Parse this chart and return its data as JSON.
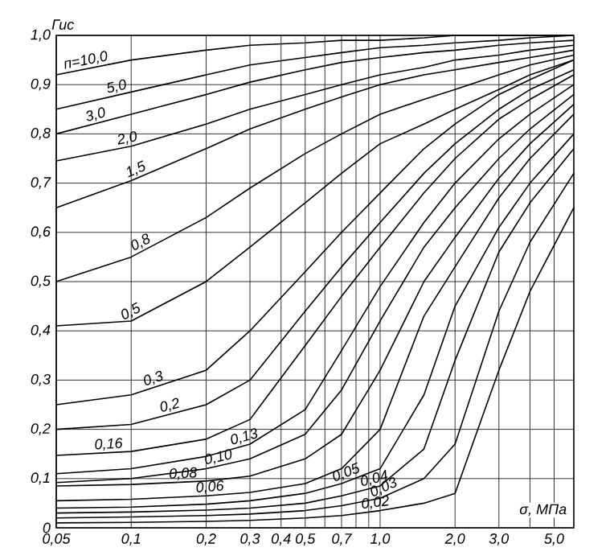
{
  "chart_data": {
    "type": "line",
    "ylabel": "Гис",
    "xlabel": "σ, МПа",
    "log": "x",
    "grid": true,
    "marker": "none",
    "line_style": "solid",
    "xlim": [
      0.05,
      6.0
    ],
    "ylim": [
      0,
      1.0
    ],
    "xticks": [
      {
        "value": 0.05,
        "label": "0,05"
      },
      {
        "value": 0.1,
        "label": "0,1"
      },
      {
        "value": 0.2,
        "label": "0,2"
      },
      {
        "value": 0.3,
        "label": "0,3"
      },
      {
        "value": 0.4,
        "label": "0,4"
      },
      {
        "value": 0.5,
        "label": "0,5"
      },
      {
        "value": 0.6,
        "label": null
      },
      {
        "value": 0.7,
        "label": "0,7"
      },
      {
        "value": 0.8,
        "label": null
      },
      {
        "value": 0.9,
        "label": null
      },
      {
        "value": 1.0,
        "label": "1,0"
      },
      {
        "value": 2.0,
        "label": "2,0"
      },
      {
        "value": 3.0,
        "label": "3,0"
      },
      {
        "value": 4.0,
        "label": null
      },
      {
        "value": 5.0,
        "label": "5,0"
      }
    ],
    "yticks": [
      {
        "value": 0,
        "label": "0"
      },
      {
        "value": 0.1,
        "label": "0,1"
      },
      {
        "value": 0.2,
        "label": "0,2"
      },
      {
        "value": 0.3,
        "label": "0,3"
      },
      {
        "value": 0.4,
        "label": "0,4"
      },
      {
        "value": 0.5,
        "label": "0,5"
      },
      {
        "value": 0.6,
        "label": "0,6"
      },
      {
        "value": 0.7,
        "label": "0,7"
      },
      {
        "value": 0.8,
        "label": "0,8"
      },
      {
        "value": 0.9,
        "label": "0,9"
      },
      {
        "value": 1.0,
        "label": "1,0"
      }
    ],
    "x": [
      0.05,
      0.1,
      0.2,
      0.3,
      0.5,
      0.7,
      1.0,
      1.5,
      2.0,
      3.0,
      4.0,
      6.0
    ],
    "series": [
      {
        "name": "п=10,0",
        "color": "#000000",
        "values": [
          0.92,
          0.95,
          0.97,
          0.98,
          0.985,
          0.99,
          0.99,
          0.995,
          1.0,
          1.0,
          1.0,
          1.0
        ]
      },
      {
        "name": "5,0",
        "color": "#000000",
        "values": [
          0.85,
          0.885,
          0.92,
          0.94,
          0.955,
          0.965,
          0.975,
          0.98,
          0.985,
          0.99,
          0.995,
          1.0
        ]
      },
      {
        "name": "3,0",
        "color": "#000000",
        "values": [
          0.8,
          0.84,
          0.88,
          0.905,
          0.93,
          0.945,
          0.955,
          0.965,
          0.97,
          0.98,
          0.985,
          0.99
        ]
      },
      {
        "name": "2,0",
        "color": "#000000",
        "values": [
          0.745,
          0.775,
          0.82,
          0.85,
          0.88,
          0.9,
          0.92,
          0.935,
          0.95,
          0.96,
          0.97,
          0.98
        ]
      },
      {
        "name": "1,5",
        "color": "#000000",
        "values": [
          0.65,
          0.705,
          0.77,
          0.81,
          0.85,
          0.875,
          0.9,
          0.92,
          0.93,
          0.945,
          0.955,
          0.97
        ]
      },
      {
        "name": "0,8",
        "color": "#000000",
        "values": [
          0.5,
          0.55,
          0.63,
          0.69,
          0.76,
          0.8,
          0.84,
          0.87,
          0.89,
          0.92,
          0.94,
          0.96
        ]
      },
      {
        "name": "0,5",
        "color": "#000000",
        "values": [
          0.41,
          0.42,
          0.5,
          0.57,
          0.66,
          0.72,
          0.78,
          0.82,
          0.85,
          0.89,
          0.92,
          0.95
        ]
      },
      {
        "name": "0,3",
        "color": "#000000",
        "values": [
          0.25,
          0.27,
          0.32,
          0.4,
          0.52,
          0.6,
          0.68,
          0.77,
          0.82,
          0.88,
          0.91,
          0.95
        ]
      },
      {
        "name": "0,2",
        "color": "#000000",
        "values": [
          0.2,
          0.21,
          0.25,
          0.3,
          0.44,
          0.53,
          0.62,
          0.72,
          0.78,
          0.85,
          0.89,
          0.93
        ]
      },
      {
        "name": "0,16",
        "color": "#000000",
        "values": [
          0.147,
          0.155,
          0.18,
          0.22,
          0.37,
          0.47,
          0.57,
          0.68,
          0.75,
          0.83,
          0.87,
          0.92
        ]
      },
      {
        "name": "0,13",
        "color": "#000000",
        "values": [
          0.11,
          0.12,
          0.145,
          0.17,
          0.24,
          0.36,
          0.49,
          0.62,
          0.7,
          0.79,
          0.84,
          0.9
        ]
      },
      {
        "name": "0,10",
        "color": "#000000",
        "values": [
          0.092,
          0.1,
          0.12,
          0.14,
          0.19,
          0.28,
          0.42,
          0.57,
          0.65,
          0.75,
          0.81,
          0.88
        ]
      },
      {
        "name": "0,08",
        "color": "#000000",
        "values": [
          0.085,
          0.088,
          0.095,
          0.105,
          0.14,
          0.19,
          0.32,
          0.5,
          0.59,
          0.71,
          0.78,
          0.86
        ]
      },
      {
        "name": "0,06",
        "color": "#000000",
        "values": [
          0.055,
          0.058,
          0.065,
          0.072,
          0.09,
          0.12,
          0.2,
          0.43,
          0.53,
          0.67,
          0.75,
          0.84
        ]
      },
      {
        "name": "0,05",
        "color": "#000000",
        "values": [
          0.04,
          0.042,
          0.048,
          0.055,
          0.07,
          0.09,
          0.12,
          0.27,
          0.45,
          0.61,
          0.7,
          0.8
        ]
      },
      {
        "name": "0,04",
        "color": "#000000",
        "values": [
          0.03,
          0.032,
          0.036,
          0.04,
          0.05,
          0.065,
          0.085,
          0.16,
          0.34,
          0.56,
          0.66,
          0.77
        ]
      },
      {
        "name": "0,03",
        "color": "#000000",
        "values": [
          0.02,
          0.022,
          0.025,
          0.028,
          0.035,
          0.045,
          0.06,
          0.1,
          0.17,
          0.44,
          0.58,
          0.72
        ]
      },
      {
        "name": "0,02",
        "color": "#000000",
        "values": [
          0.01,
          0.011,
          0.013,
          0.015,
          0.02,
          0.025,
          0.035,
          0.05,
          0.07,
          0.32,
          0.48,
          0.65
        ]
      }
    ]
  }
}
